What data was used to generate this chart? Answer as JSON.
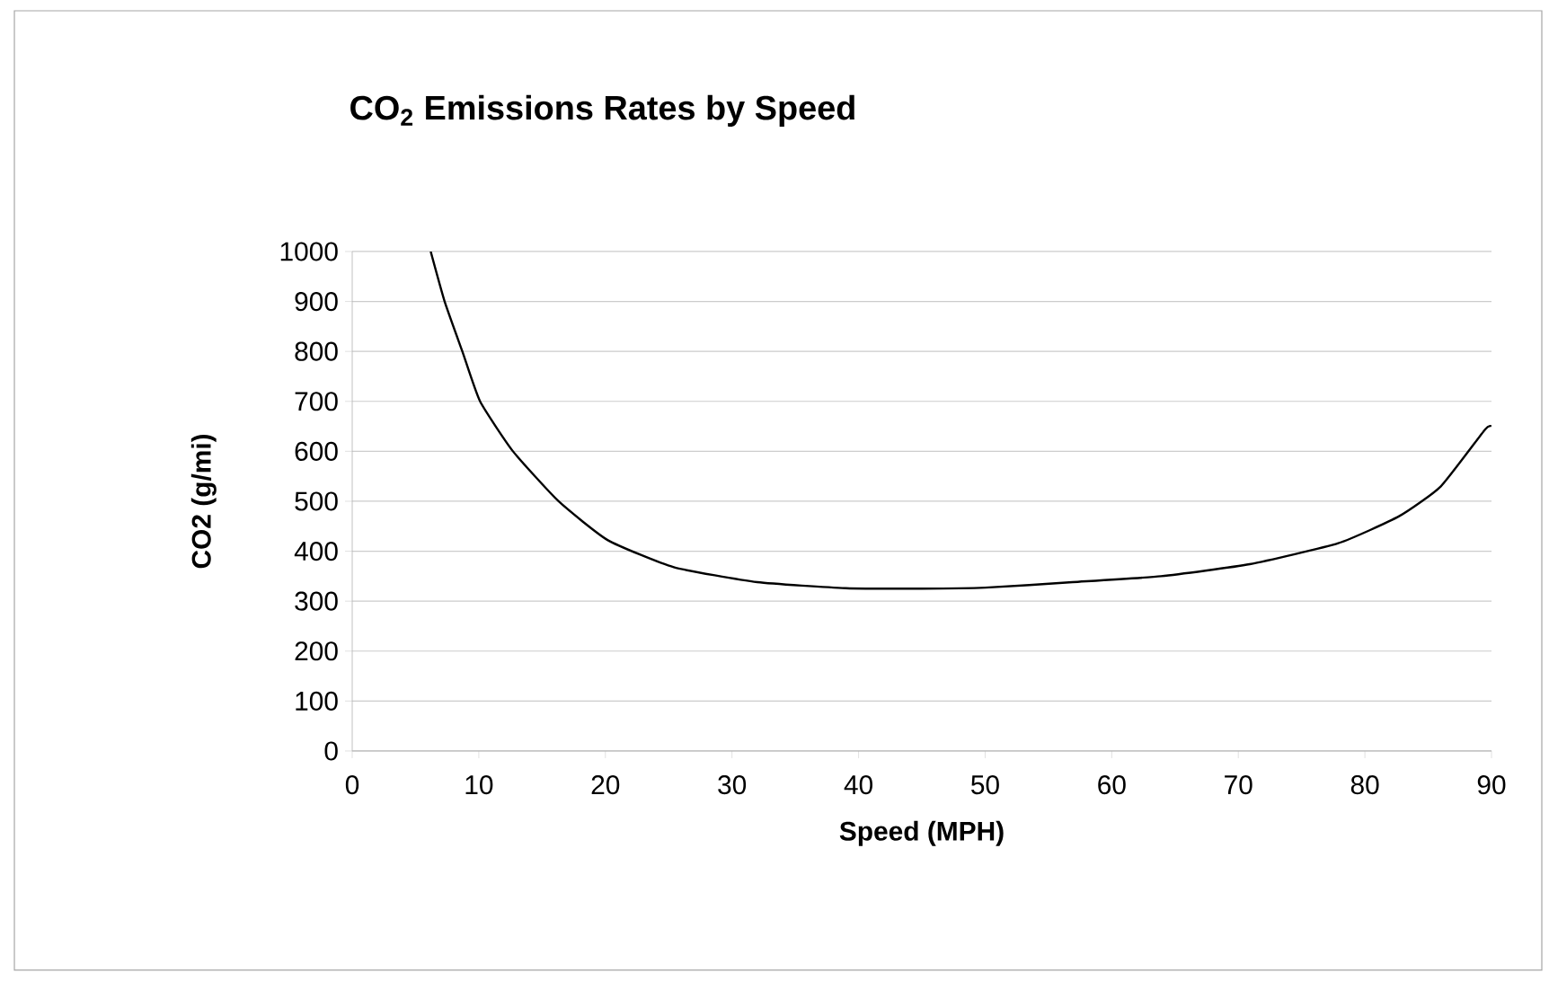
{
  "chart_data": {
    "type": "line",
    "title": "CO$_{2}$ Emissions Rates by Speed",
    "xlabel": "Speed (MPH)",
    "ylabel": "CO2 (g/mi)",
    "x": [
      6.2,
      7.3,
      8.7,
      10.1,
      12.7,
      16.3,
      20.2,
      25.4,
      32,
      39,
      45,
      50,
      56.9,
      63.9,
      70.9,
      77.9,
      82.7,
      86,
      89.5,
      90
    ],
    "values": [
      1000,
      900,
      800,
      700,
      600,
      500,
      422,
      368,
      338,
      326,
      325,
      327,
      338,
      350,
      374,
      416,
      470,
      530,
      644,
      650
    ],
    "color": "#000000",
    "xlim": [
      0,
      90
    ],
    "ylim": [
      0,
      1000
    ],
    "xticks": [
      0,
      10,
      20,
      30,
      40,
      50,
      60,
      70,
      80,
      90
    ],
    "yticks": [
      0,
      100,
      200,
      300,
      400,
      500,
      600,
      700,
      800,
      900,
      1000
    ],
    "grid": "y",
    "marker": "none",
    "line_style": "solid"
  }
}
